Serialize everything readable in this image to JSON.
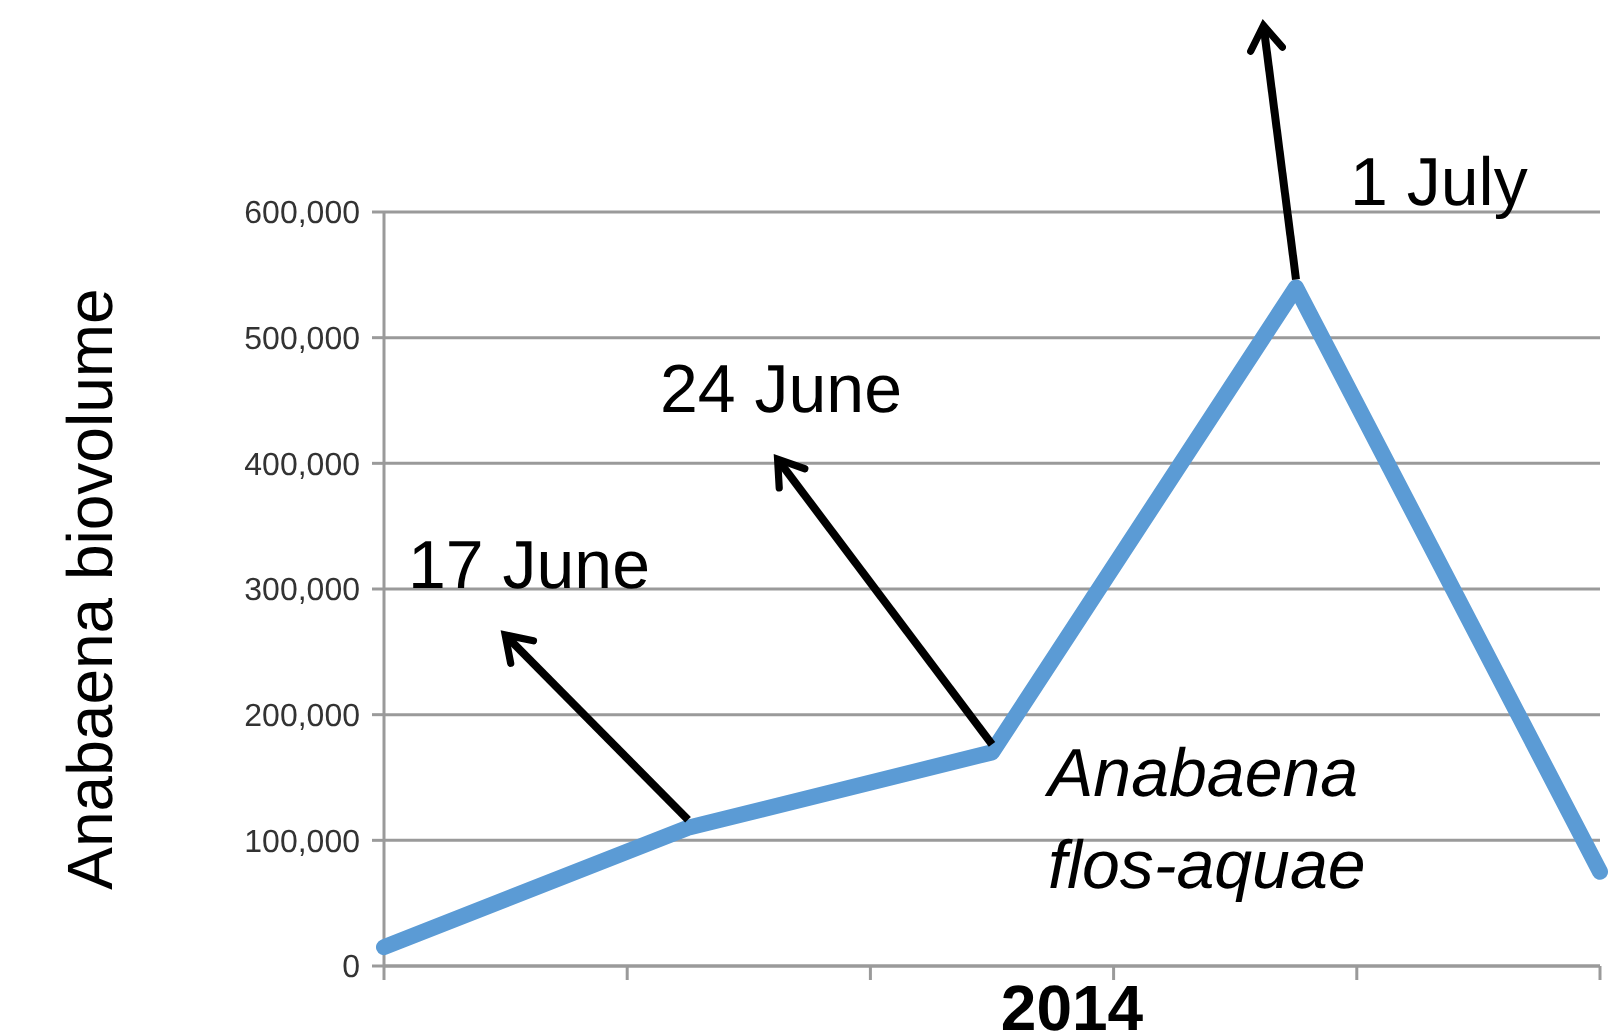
{
  "chart_data": {
    "type": "line",
    "xlabel": "2014",
    "ylabel": "Anabaena biovolume",
    "categories": [
      null,
      null,
      null,
      null,
      null
    ],
    "series": [
      {
        "name": "Anabaena flos-aquae",
        "color": "#5b9bd5",
        "values": [
          15000,
          110000,
          170000,
          540000,
          75000
        ]
      }
    ],
    "ylim": [
      0,
      600000
    ],
    "yticks": [
      {
        "value": 0,
        "label": "0"
      },
      {
        "value": 100000,
        "label": "100,000"
      },
      {
        "value": 200000,
        "label": "200,000"
      },
      {
        "value": 300000,
        "label": "300,000"
      },
      {
        "value": 400000,
        "label": "400,000"
      },
      {
        "value": 500000,
        "label": "500,000"
      },
      {
        "value": 600000,
        "label": "600,000"
      }
    ],
    "grid": "y",
    "marker": "none",
    "line_style": "solid",
    "annotations": [
      "17 June",
      "24 June",
      "1 July"
    ]
  }
}
